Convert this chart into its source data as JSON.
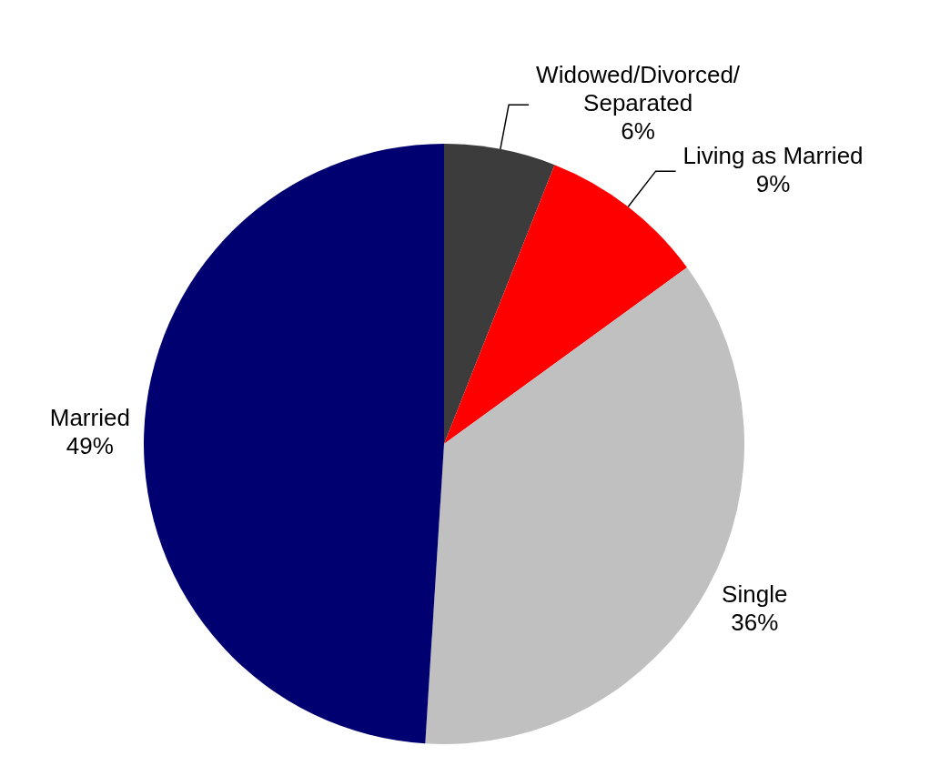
{
  "chart_data": {
    "type": "pie",
    "categories": [
      "Widowed/Divorced/Separated",
      "Living as Married",
      "Single",
      "Married"
    ],
    "values": [
      6,
      9,
      36,
      49
    ],
    "value_labels": [
      "6%",
      "9%",
      "36%",
      "49%"
    ],
    "colors": [
      "#3c3c3c",
      "#ff0000",
      "#c0c0c0",
      "#000070"
    ],
    "legend": false
  }
}
